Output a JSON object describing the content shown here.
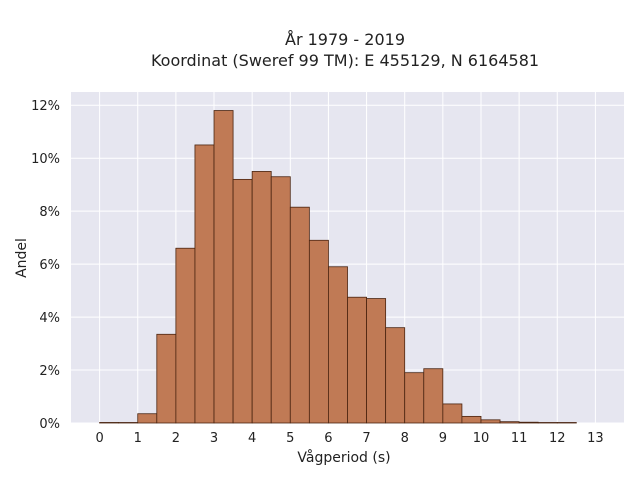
{
  "chart_data": {
    "type": "bar",
    "title_line1": "År 1979 - 2019",
    "title_line2": "Koordinat (Sweref 99 TM): E 455129, N 6164581",
    "xlabel": "Vågperiod (s)",
    "ylabel": "Andel",
    "xlim": [
      -0.75,
      13.75
    ],
    "ylim": [
      0,
      12.5
    ],
    "x_ticks": [
      "0",
      "1",
      "2",
      "3",
      "4",
      "5",
      "6",
      "7",
      "8",
      "9",
      "10",
      "11",
      "12",
      "13"
    ],
    "y_ticks": [
      "0%",
      "2%",
      "4%",
      "6%",
      "8%",
      "10%",
      "12%"
    ],
    "bin_width": 0.5,
    "bins": [
      {
        "x": 0.0,
        "value": 0.02
      },
      {
        "x": 0.5,
        "value": 0.0
      },
      {
        "x": 1.0,
        "value": 0.35
      },
      {
        "x": 1.5,
        "value": 3.35
      },
      {
        "x": 2.0,
        "value": 6.6
      },
      {
        "x": 2.5,
        "value": 10.5
      },
      {
        "x": 3.0,
        "value": 11.8
      },
      {
        "x": 3.5,
        "value": 9.2
      },
      {
        "x": 4.0,
        "value": 9.5
      },
      {
        "x": 4.5,
        "value": 9.3
      },
      {
        "x": 5.0,
        "value": 8.15
      },
      {
        "x": 5.5,
        "value": 6.9
      },
      {
        "x": 6.0,
        "value": 5.9
      },
      {
        "x": 6.5,
        "value": 4.75
      },
      {
        "x": 7.0,
        "value": 4.7
      },
      {
        "x": 7.5,
        "value": 3.6
      },
      {
        "x": 8.0,
        "value": 1.9
      },
      {
        "x": 8.5,
        "value": 2.05
      },
      {
        "x": 9.0,
        "value": 0.72
      },
      {
        "x": 9.5,
        "value": 0.25
      },
      {
        "x": 10.0,
        "value": 0.12
      },
      {
        "x": 10.5,
        "value": 0.05
      },
      {
        "x": 11.0,
        "value": 0.03
      },
      {
        "x": 11.5,
        "value": 0.01
      },
      {
        "x": 12.0,
        "value": 0.005
      }
    ],
    "grid": true,
    "colors": {
      "bar_fill": "#c07a55",
      "bar_edge": "#4a2410",
      "plot_bg": "#e6e6f0",
      "grid": "#ffffff"
    }
  }
}
